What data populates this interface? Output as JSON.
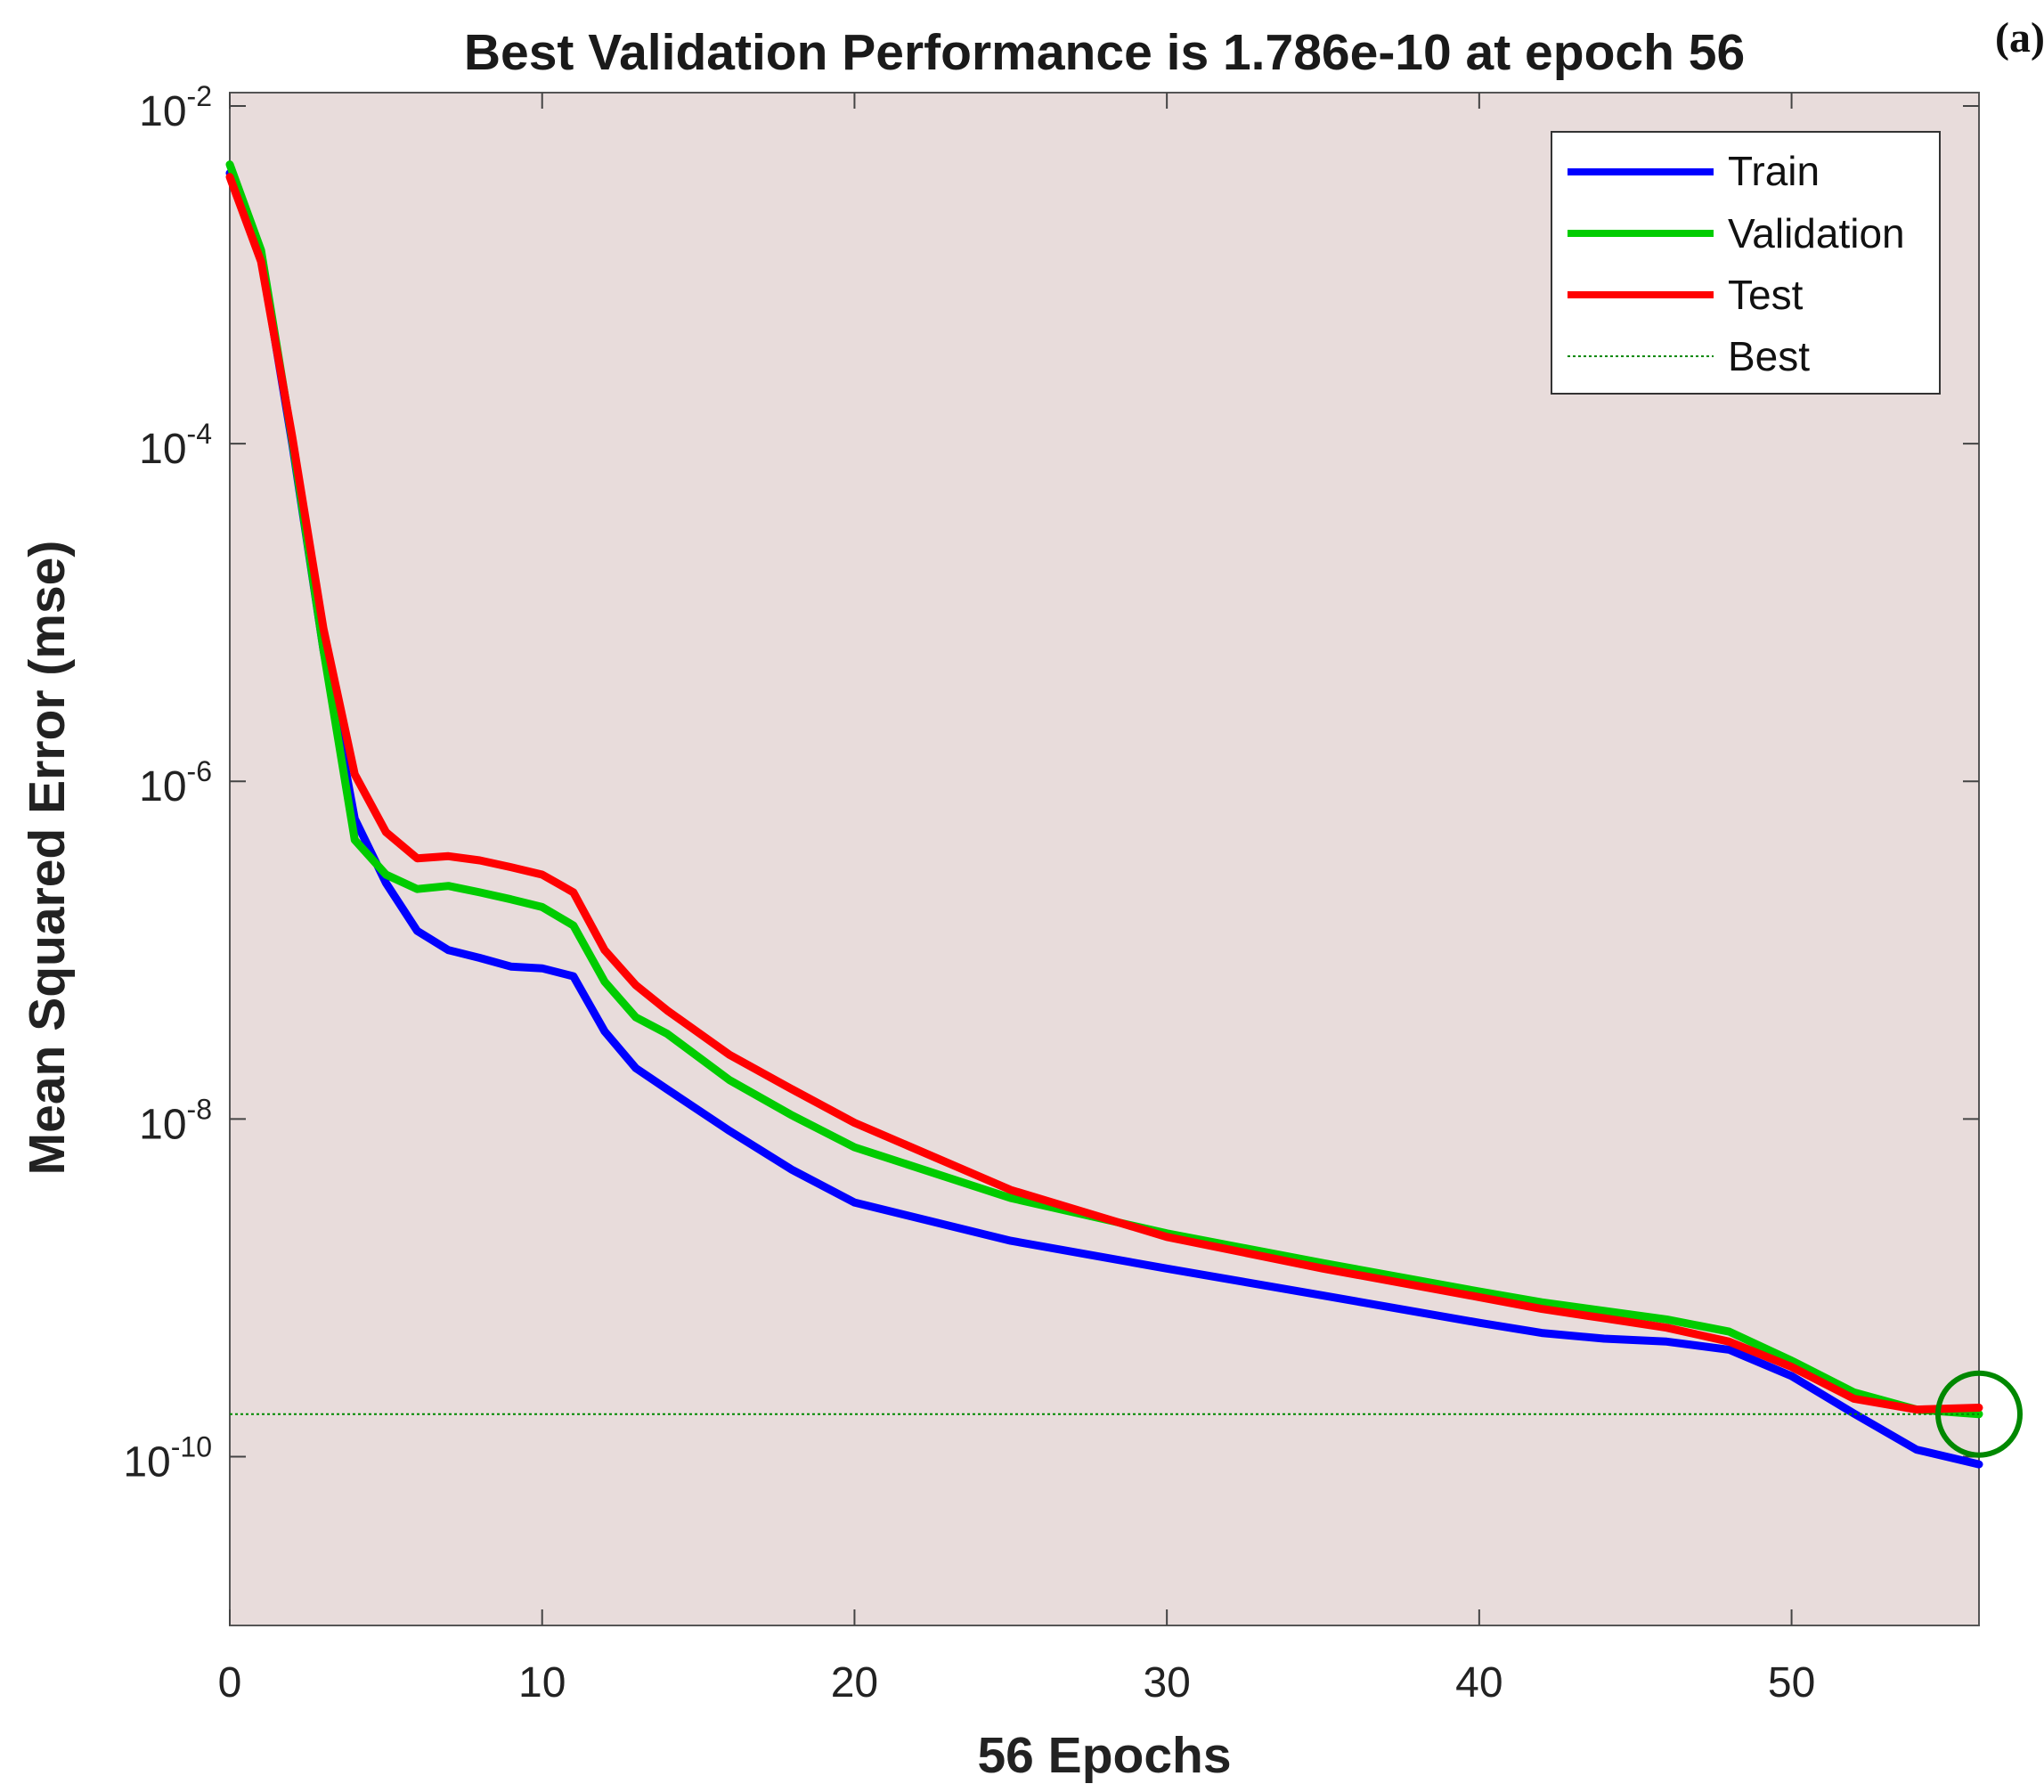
{
  "chart_data": {
    "type": "line",
    "title": "Best Validation Performance is 1.786e-10 at epoch 56",
    "panel_label": "(a)",
    "xlabel": "56 Epochs",
    "ylabel": "Mean Squared Error  (mse)",
    "xlim": [
      0,
      56
    ],
    "ylim": [
      1e-11,
      0.012
    ],
    "yscale": "log",
    "x_ticks": [
      0,
      10,
      20,
      30,
      40,
      50
    ],
    "y_ticks": [
      {
        "value": 1e-10,
        "base": "10",
        "exp": "-10"
      },
      {
        "value": 1e-08,
        "base": "10",
        "exp": "-8"
      },
      {
        "value": 1e-06,
        "base": "10",
        "exp": "-6"
      },
      {
        "value": 0.0001,
        "base": "10",
        "exp": "-4"
      },
      {
        "value": 0.01,
        "base": "10",
        "exp": "-2"
      }
    ],
    "grid": false,
    "background_color": "#e8dcdb",
    "legend_position": "top-right",
    "series": [
      {
        "name": "Train",
        "color": "#0000ff",
        "x": [
          0,
          1,
          2,
          3,
          4,
          5,
          6,
          7,
          8,
          9,
          10,
          11,
          12,
          13,
          14,
          16,
          18,
          20,
          25,
          30,
          35,
          40,
          42,
          44,
          46,
          48,
          50,
          52,
          54,
          56
        ],
        "y": [
          0.004,
          0.0013,
          0.0001,
          6e-06,
          6e-07,
          2.5e-07,
          1.3e-07,
          1e-07,
          9e-08,
          8e-08,
          7.8e-08,
          7e-08,
          3.3e-08,
          2e-08,
          1.5e-08,
          8.5e-09,
          5e-09,
          3.2e-09,
          1.9e-09,
          1.3e-09,
          9e-10,
          6.2e-10,
          5.4e-10,
          5e-10,
          4.8e-10,
          4.3e-10,
          3e-10,
          1.8e-10,
          1.1e-10,
          9e-11
        ]
      },
      {
        "name": "Validation",
        "color": "#00cc00",
        "x": [
          0,
          1,
          2,
          3,
          4,
          5,
          6,
          7,
          8,
          9,
          10,
          11,
          12,
          13,
          14,
          16,
          18,
          20,
          25,
          30,
          35,
          40,
          42,
          44,
          46,
          48,
          50,
          52,
          54,
          56
        ],
        "y": [
          0.0045,
          0.0014,
          0.000105,
          6e-06,
          4.5e-07,
          2.8e-07,
          2.3e-07,
          2.4e-07,
          2.2e-07,
          2e-07,
          1.8e-07,
          1.4e-07,
          6.5e-08,
          4e-08,
          3.2e-08,
          1.7e-08,
          1.05e-08,
          6.8e-09,
          3.4e-09,
          2.1e-09,
          1.4e-09,
          9.5e-10,
          8.2e-10,
          7.3e-10,
          6.5e-10,
          5.5e-10,
          3.7e-10,
          2.4e-10,
          1.9e-10,
          1.786e-10
        ]
      },
      {
        "name": "Test",
        "color": "#ff0000",
        "x": [
          0,
          1,
          2,
          3,
          4,
          5,
          6,
          7,
          8,
          9,
          10,
          11,
          12,
          13,
          14,
          16,
          18,
          20,
          25,
          30,
          35,
          40,
          42,
          44,
          46,
          48,
          50,
          52,
          54,
          56
        ],
        "y": [
          0.0038,
          0.0012,
          0.00011,
          8e-06,
          1.1e-06,
          5e-07,
          3.5e-07,
          3.6e-07,
          3.4e-07,
          3.1e-07,
          2.8e-07,
          2.2e-07,
          1e-07,
          6.2e-08,
          4.4e-08,
          2.4e-08,
          1.5e-08,
          9.5e-09,
          3.8e-09,
          2e-09,
          1.3e-09,
          8.8e-10,
          7.5e-10,
          6.6e-10,
          5.8e-10,
          4.8e-10,
          3.4e-10,
          2.2e-10,
          1.9e-10,
          1.95e-10
        ]
      }
    ],
    "best": {
      "name": "Best",
      "color": "#008800",
      "value": 1.786e-10,
      "epoch": 56
    }
  }
}
